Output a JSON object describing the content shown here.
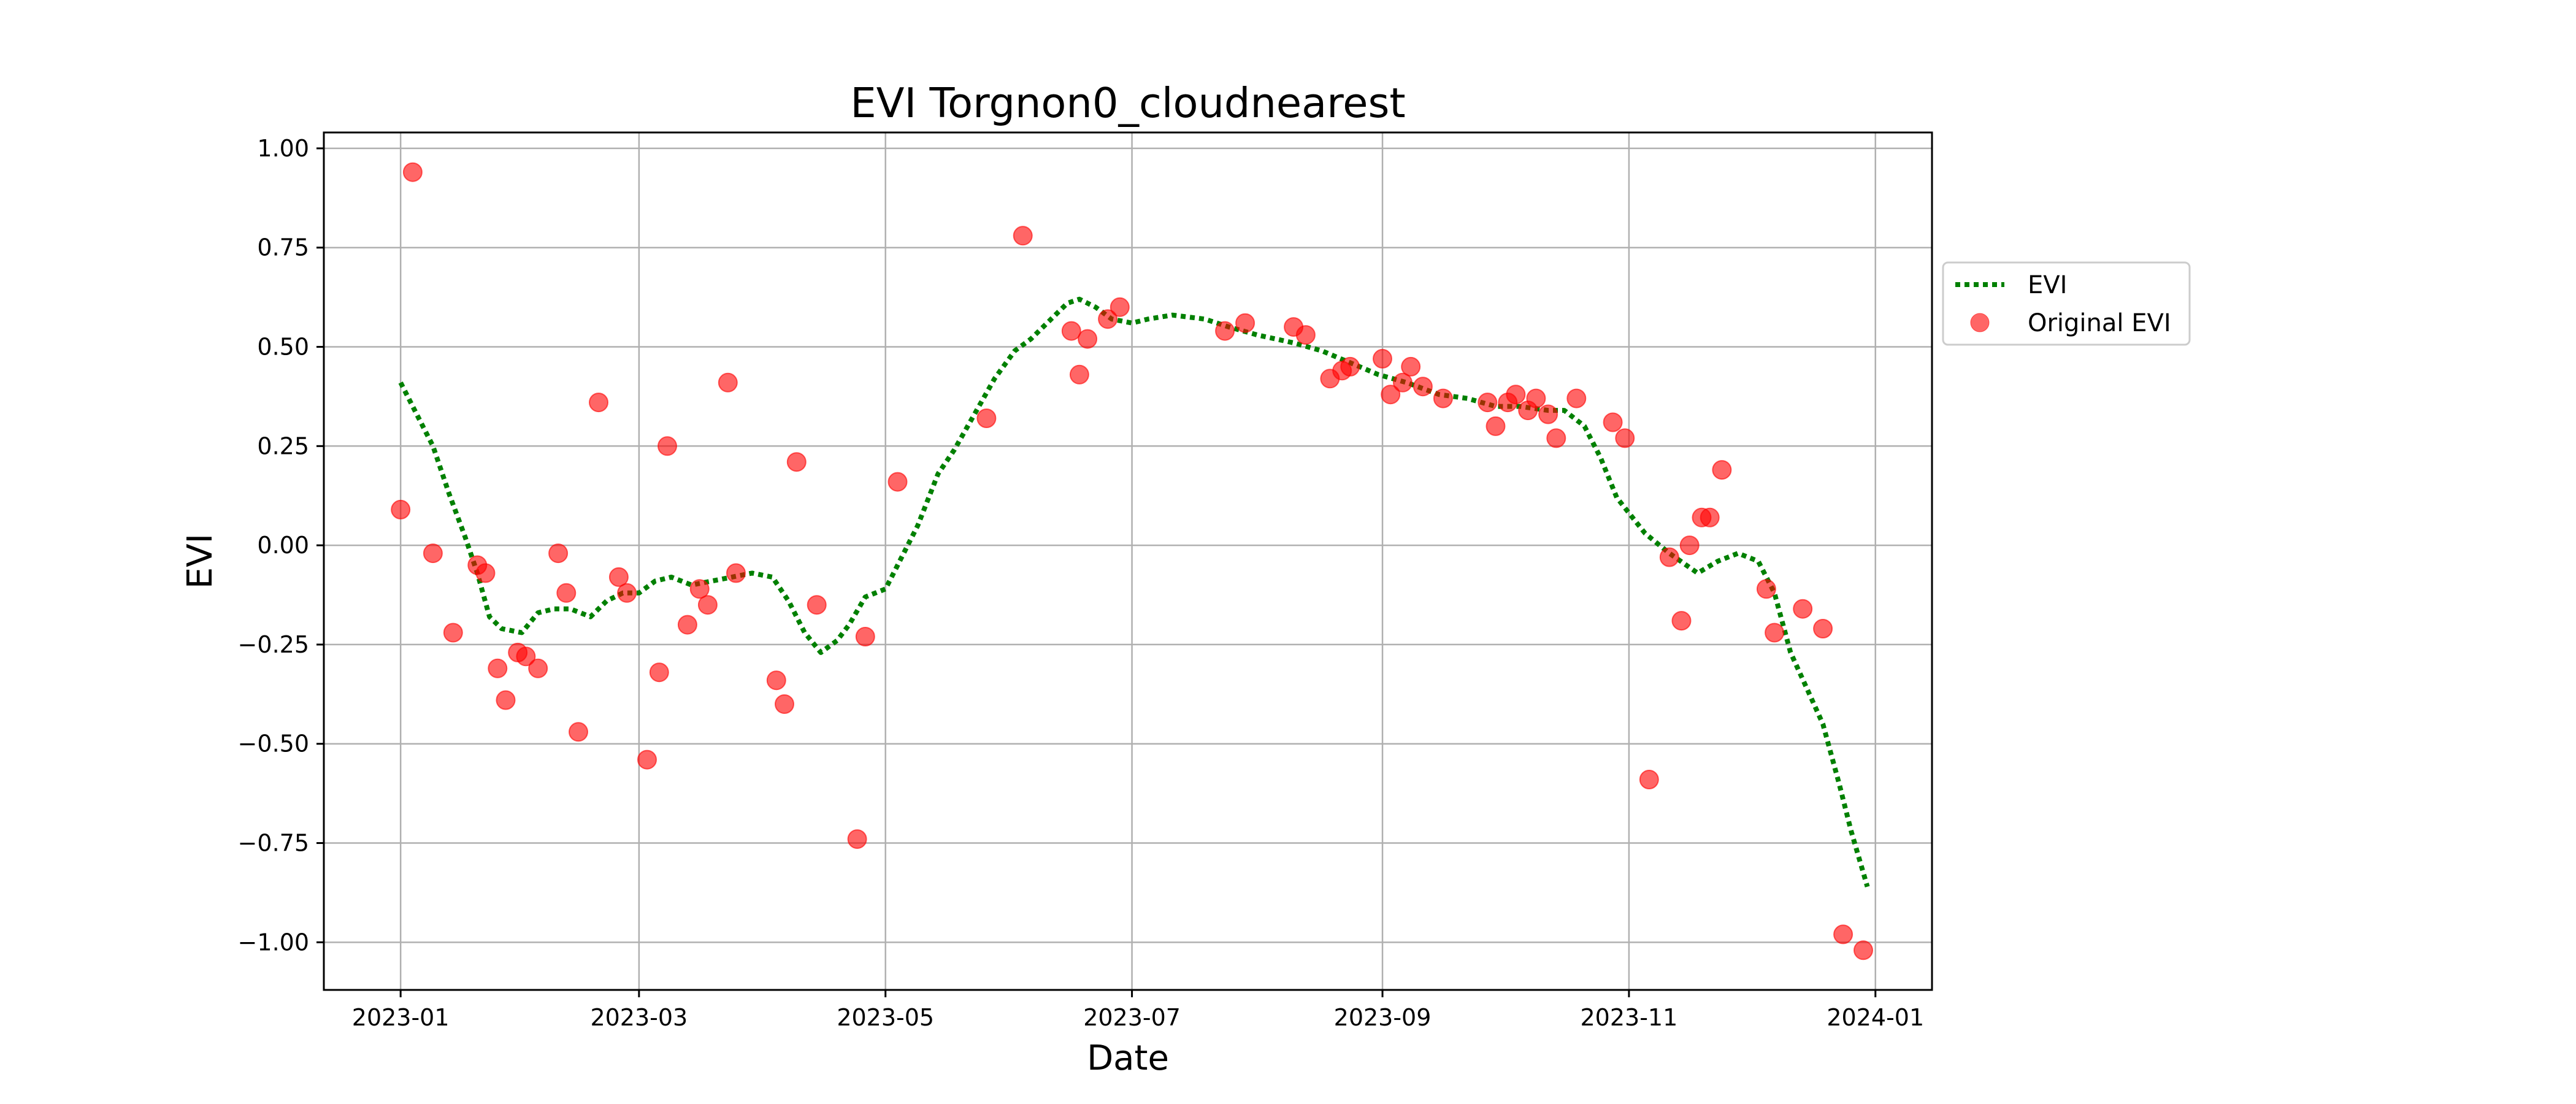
{
  "chart_data": {
    "type": "line+scatter",
    "title": "EVI Torgnon0_cloudnearest",
    "xlabel": "Date",
    "ylabel": "EVI",
    "xlim": [
      "2022-12-13",
      "2024-01-15"
    ],
    "ylim": [
      -1.12,
      1.04
    ],
    "grid": true,
    "legend_position": "right-outside",
    "x_ticks": [
      "2023-01",
      "2023-03",
      "2023-05",
      "2023-07",
      "2023-09",
      "2023-11",
      "2024-01"
    ],
    "y_ticks": [
      "1.00",
      "0.75",
      "0.50",
      "0.25",
      "0.00",
      "−0.25",
      "−0.50",
      "−0.75",
      "−1.00"
    ],
    "series": [
      {
        "name": "EVI",
        "kind": "line",
        "style": "dotted",
        "color": "#008000",
        "points": [
          [
            "2023-01-01",
            0.41
          ],
          [
            "2023-01-04",
            0.35
          ],
          [
            "2023-01-09",
            0.25
          ],
          [
            "2023-01-13",
            0.13
          ],
          [
            "2023-01-17",
            0.02
          ],
          [
            "2023-01-20",
            -0.07
          ],
          [
            "2023-01-23",
            -0.18
          ],
          [
            "2023-01-26",
            -0.21
          ],
          [
            "2023-01-31",
            -0.22
          ],
          [
            "2023-02-04",
            -0.17
          ],
          [
            "2023-02-08",
            -0.16
          ],
          [
            "2023-02-12",
            -0.16
          ],
          [
            "2023-02-17",
            -0.18
          ],
          [
            "2023-02-21",
            -0.14
          ],
          [
            "2023-02-25",
            -0.12
          ],
          [
            "2023-03-01",
            -0.12
          ],
          [
            "2023-03-05",
            -0.09
          ],
          [
            "2023-03-09",
            -0.08
          ],
          [
            "2023-03-14",
            -0.1
          ],
          [
            "2023-03-19",
            -0.09
          ],
          [
            "2023-03-24",
            -0.08
          ],
          [
            "2023-03-29",
            -0.07
          ],
          [
            "2023-04-03",
            -0.08
          ],
          [
            "2023-04-07",
            -0.14
          ],
          [
            "2023-04-11",
            -0.22
          ],
          [
            "2023-04-15",
            -0.27
          ],
          [
            "2023-04-19",
            -0.24
          ],
          [
            "2023-04-22",
            -0.2
          ],
          [
            "2023-04-26",
            -0.13
          ],
          [
            "2023-05-01",
            -0.11
          ],
          [
            "2023-05-04",
            -0.05
          ],
          [
            "2023-05-09",
            0.05
          ],
          [
            "2023-05-14",
            0.18
          ],
          [
            "2023-05-18",
            0.24
          ],
          [
            "2023-05-23",
            0.33
          ],
          [
            "2023-05-28",
            0.42
          ],
          [
            "2023-06-02",
            0.49
          ],
          [
            "2023-06-06",
            0.52
          ],
          [
            "2023-06-10",
            0.56
          ],
          [
            "2023-06-15",
            0.61
          ],
          [
            "2023-06-18",
            0.62
          ],
          [
            "2023-06-22",
            0.6
          ],
          [
            "2023-06-26",
            0.57
          ],
          [
            "2023-07-01",
            0.56
          ],
          [
            "2023-07-05",
            0.57
          ],
          [
            "2023-07-11",
            0.58
          ],
          [
            "2023-07-19",
            0.57
          ],
          [
            "2023-07-25",
            0.55
          ],
          [
            "2023-08-01",
            0.53
          ],
          [
            "2023-08-10",
            0.51
          ],
          [
            "2023-08-17",
            0.49
          ],
          [
            "2023-08-24",
            0.46
          ],
          [
            "2023-08-31",
            0.43
          ],
          [
            "2023-09-07",
            0.41
          ],
          [
            "2023-09-15",
            0.38
          ],
          [
            "2023-09-22",
            0.37
          ],
          [
            "2023-09-29",
            0.35
          ],
          [
            "2023-10-05",
            0.35
          ],
          [
            "2023-10-12",
            0.34
          ],
          [
            "2023-10-16",
            0.34
          ],
          [
            "2023-10-21",
            0.3
          ],
          [
            "2023-10-25",
            0.22
          ],
          [
            "2023-10-29",
            0.12
          ],
          [
            "2023-11-05",
            0.03
          ],
          [
            "2023-11-11",
            -0.02
          ],
          [
            "2023-11-18",
            -0.07
          ],
          [
            "2023-11-23",
            -0.04
          ],
          [
            "2023-11-28",
            -0.02
          ],
          [
            "2023-12-03",
            -0.04
          ],
          [
            "2023-12-07",
            -0.12
          ],
          [
            "2023-12-11",
            -0.27
          ],
          [
            "2023-12-15",
            -0.36
          ],
          [
            "2023-12-19",
            -0.45
          ],
          [
            "2023-12-23",
            -0.6
          ],
          [
            "2023-12-26",
            -0.72
          ],
          [
            "2023-12-30",
            -0.86
          ]
        ]
      },
      {
        "name": "Original EVI",
        "kind": "scatter",
        "color": "#ff0000",
        "points": [
          [
            "2023-01-01",
            0.09
          ],
          [
            "2023-01-04",
            0.94
          ],
          [
            "2023-01-09",
            -0.02
          ],
          [
            "2023-01-14",
            -0.22
          ],
          [
            "2023-01-20",
            -0.05
          ],
          [
            "2023-01-22",
            -0.07
          ],
          [
            "2023-01-25",
            -0.31
          ],
          [
            "2023-01-27",
            -0.39
          ],
          [
            "2023-01-30",
            -0.27
          ],
          [
            "2023-02-01",
            -0.28
          ],
          [
            "2023-02-04",
            -0.31
          ],
          [
            "2023-02-09",
            -0.02
          ],
          [
            "2023-02-11",
            -0.12
          ],
          [
            "2023-02-14",
            -0.47
          ],
          [
            "2023-02-19",
            0.36
          ],
          [
            "2023-02-24",
            -0.08
          ],
          [
            "2023-02-26",
            -0.12
          ],
          [
            "2023-03-03",
            -0.54
          ],
          [
            "2023-03-06",
            -0.32
          ],
          [
            "2023-03-08",
            0.25
          ],
          [
            "2023-03-13",
            -0.2
          ],
          [
            "2023-03-16",
            -0.11
          ],
          [
            "2023-03-18",
            -0.15
          ],
          [
            "2023-03-23",
            0.41
          ],
          [
            "2023-03-25",
            -0.07
          ],
          [
            "2023-04-04",
            -0.34
          ],
          [
            "2023-04-06",
            -0.4
          ],
          [
            "2023-04-09",
            0.21
          ],
          [
            "2023-04-14",
            -0.15
          ],
          [
            "2023-04-24",
            -0.74
          ],
          [
            "2023-04-26",
            -0.23
          ],
          [
            "2023-05-04",
            0.16
          ],
          [
            "2023-05-26",
            0.32
          ],
          [
            "2023-06-04",
            0.78
          ],
          [
            "2023-06-16",
            0.54
          ],
          [
            "2023-06-18",
            0.43
          ],
          [
            "2023-06-20",
            0.52
          ],
          [
            "2023-06-25",
            0.57
          ],
          [
            "2023-06-28",
            0.6
          ],
          [
            "2023-07-24",
            0.54
          ],
          [
            "2023-07-29",
            0.56
          ],
          [
            "2023-08-10",
            0.55
          ],
          [
            "2023-08-13",
            0.53
          ],
          [
            "2023-08-19",
            0.42
          ],
          [
            "2023-08-22",
            0.44
          ],
          [
            "2023-08-24",
            0.45
          ],
          [
            "2023-09-01",
            0.47
          ],
          [
            "2023-09-03",
            0.38
          ],
          [
            "2023-09-06",
            0.41
          ],
          [
            "2023-09-08",
            0.45
          ],
          [
            "2023-09-11",
            0.4
          ],
          [
            "2023-09-16",
            0.37
          ],
          [
            "2023-09-27",
            0.36
          ],
          [
            "2023-09-29",
            0.3
          ],
          [
            "2023-10-02",
            0.36
          ],
          [
            "2023-10-04",
            0.38
          ],
          [
            "2023-10-07",
            0.34
          ],
          [
            "2023-10-09",
            0.37
          ],
          [
            "2023-10-12",
            0.33
          ],
          [
            "2023-10-14",
            0.27
          ],
          [
            "2023-10-19",
            0.37
          ],
          [
            "2023-10-28",
            0.31
          ],
          [
            "2023-10-31",
            0.27
          ],
          [
            "2023-11-06",
            -0.59
          ],
          [
            "2023-11-11",
            -0.03
          ],
          [
            "2023-11-14",
            -0.19
          ],
          [
            "2023-11-16",
            0.0
          ],
          [
            "2023-11-19",
            0.07
          ],
          [
            "2023-11-21",
            0.07
          ],
          [
            "2023-11-24",
            0.19
          ],
          [
            "2023-12-05",
            -0.11
          ],
          [
            "2023-12-07",
            -0.22
          ],
          [
            "2023-12-14",
            -0.16
          ],
          [
            "2023-12-19",
            -0.21
          ],
          [
            "2023-12-24",
            -0.98
          ],
          [
            "2023-12-29",
            -1.02
          ]
        ]
      }
    ]
  }
}
